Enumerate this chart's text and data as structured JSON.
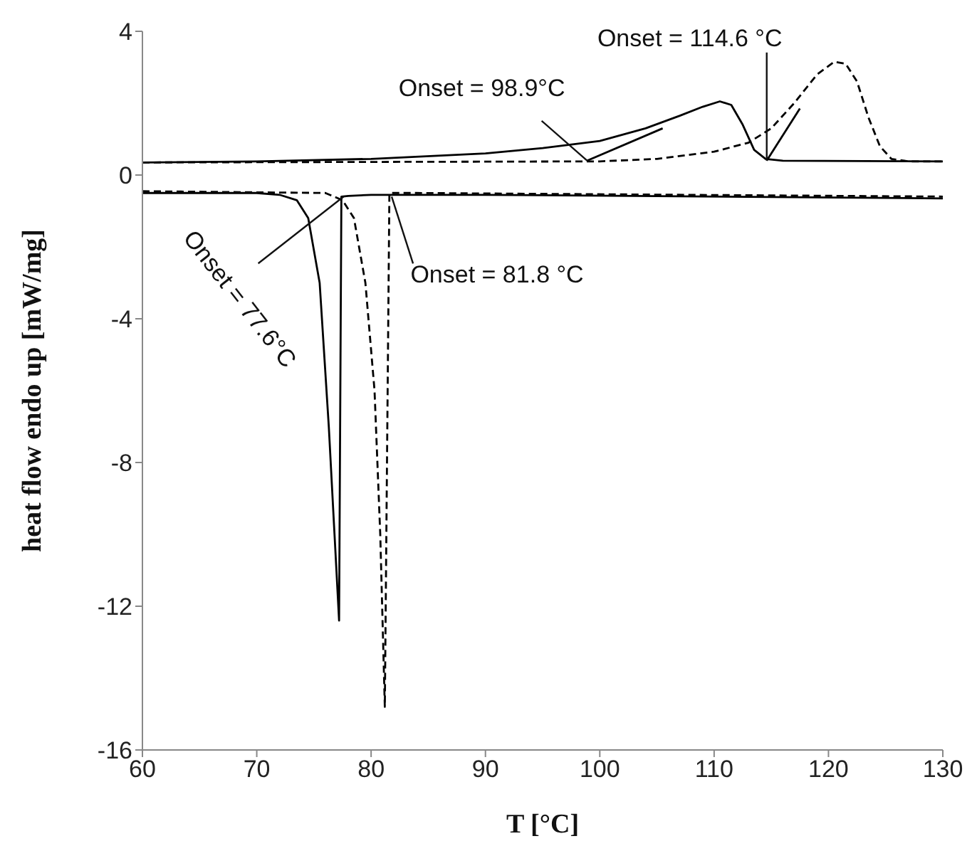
{
  "chart_data": {
    "type": "line",
    "xlabel": "T [°C]",
    "ylabel": "heat flow  endo up [mW/mg]",
    "xlim": [
      60,
      130
    ],
    "xticks": [
      60,
      70,
      80,
      90,
      100,
      110,
      120,
      130
    ],
    "ylim": [
      -16,
      4
    ],
    "yticks": [
      -16,
      -12,
      -8,
      -4,
      0,
      4
    ],
    "marker": "none",
    "series": [
      {
        "color": "#000000",
        "line_style": "solid",
        "x": [
          60,
          70,
          80,
          90,
          95,
          100,
          104,
          107,
          109,
          110.5,
          111.5,
          112.5,
          113.5,
          114.5,
          116,
          130
        ],
        "values": [
          0.35,
          0.38,
          0.45,
          0.6,
          0.75,
          0.95,
          1.3,
          1.65,
          1.9,
          2.05,
          1.95,
          1.4,
          0.7,
          0.45,
          0.4,
          0.38
        ]
      },
      {
        "color": "#000000",
        "line_style": "dashed",
        "x": [
          60,
          100,
          105,
          110,
          113,
          115,
          117,
          119,
          120.5,
          121.5,
          122.5,
          123.5,
          124.5,
          125.5,
          127,
          130
        ],
        "values": [
          0.35,
          0.38,
          0.45,
          0.65,
          0.9,
          1.3,
          2.0,
          2.8,
          3.15,
          3.1,
          2.6,
          1.6,
          0.8,
          0.45,
          0.38,
          0.38
        ]
      },
      {
        "color": "#000000",
        "line_style": "solid",
        "x": [
          60,
          70,
          72,
          73.5,
          74.5,
          75.5,
          76.3,
          76.8,
          77.2,
          77.4,
          78,
          80,
          90,
          130
        ],
        "values": [
          -0.5,
          -0.5,
          -0.55,
          -0.7,
          -1.2,
          -3,
          -7,
          -10,
          -12.4,
          -0.6,
          -0.58,
          -0.55,
          -0.55,
          -0.65
        ]
      },
      {
        "color": "#000000",
        "line_style": "dashed",
        "x": [
          60,
          76,
          77.5,
          78.5,
          79.5,
          80.3,
          80.8,
          81.2,
          81.6,
          84,
          130
        ],
        "values": [
          -0.45,
          -0.5,
          -0.7,
          -1.2,
          -3,
          -6,
          -10,
          -14.8,
          -0.5,
          -0.5,
          -0.6
        ]
      },
      {
        "color": "#000000",
        "line_style": "solid",
        "x": [
          98.9,
          105.5
        ],
        "values": [
          0.4,
          1.3
        ]
      },
      {
        "color": "#000000",
        "line_style": "solid",
        "x": [
          114.6,
          117.5
        ],
        "values": [
          0.4,
          1.85
        ]
      }
    ],
    "annotations": [
      {
        "text": "Onset = 114.6 °C",
        "x": 114.6,
        "y": 0.4
      },
      {
        "text": "Onset = 98.9°C",
        "x": 98.9,
        "y": 0.4
      },
      {
        "text": "Onset = 81.8 °C",
        "x": 81.8,
        "y": -0.6
      },
      {
        "text": "Onset = 77.6°C",
        "x": 77.6,
        "y": -0.6
      }
    ]
  }
}
